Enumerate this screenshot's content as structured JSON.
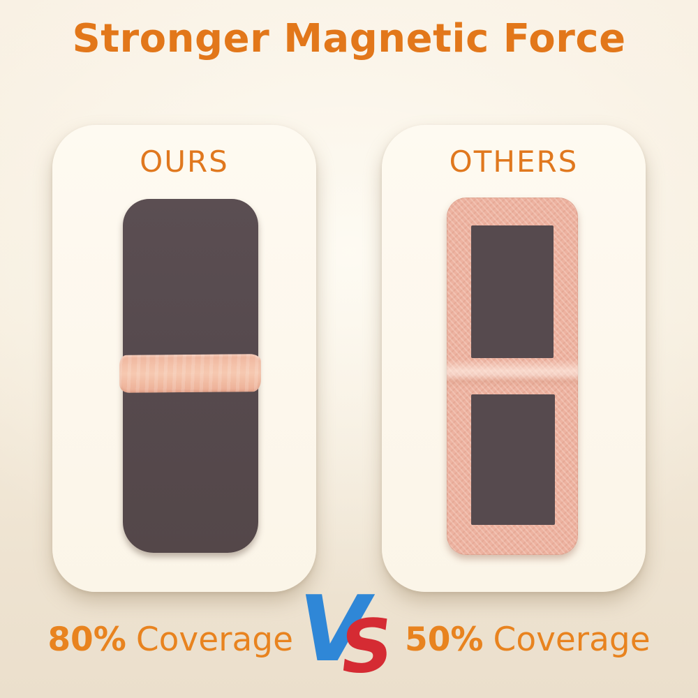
{
  "title": "Stronger Magnetic Force",
  "cards": {
    "ours": {
      "label": "OURS"
    },
    "others": {
      "label": "OTHERS"
    }
  },
  "footer": {
    "ours_value": "80%",
    "ours_label": "Coverage",
    "vs_v": "V",
    "vs_s": "S",
    "others_value": "50%",
    "others_label": "Coverage"
  },
  "colors": {
    "title_orange": "#e2771a",
    "label_orange": "#e0781e",
    "coverage_orange": "#e8831f",
    "vs_blue": "#2f87d7",
    "vs_red": "#d52b33",
    "magnet_dark": "#564a4e",
    "fabric_pink": "#edb2a0",
    "fold_strip_pink": "#f2bca4",
    "card_background": "#fdf7ec",
    "page_background": "#f6eddd"
  }
}
